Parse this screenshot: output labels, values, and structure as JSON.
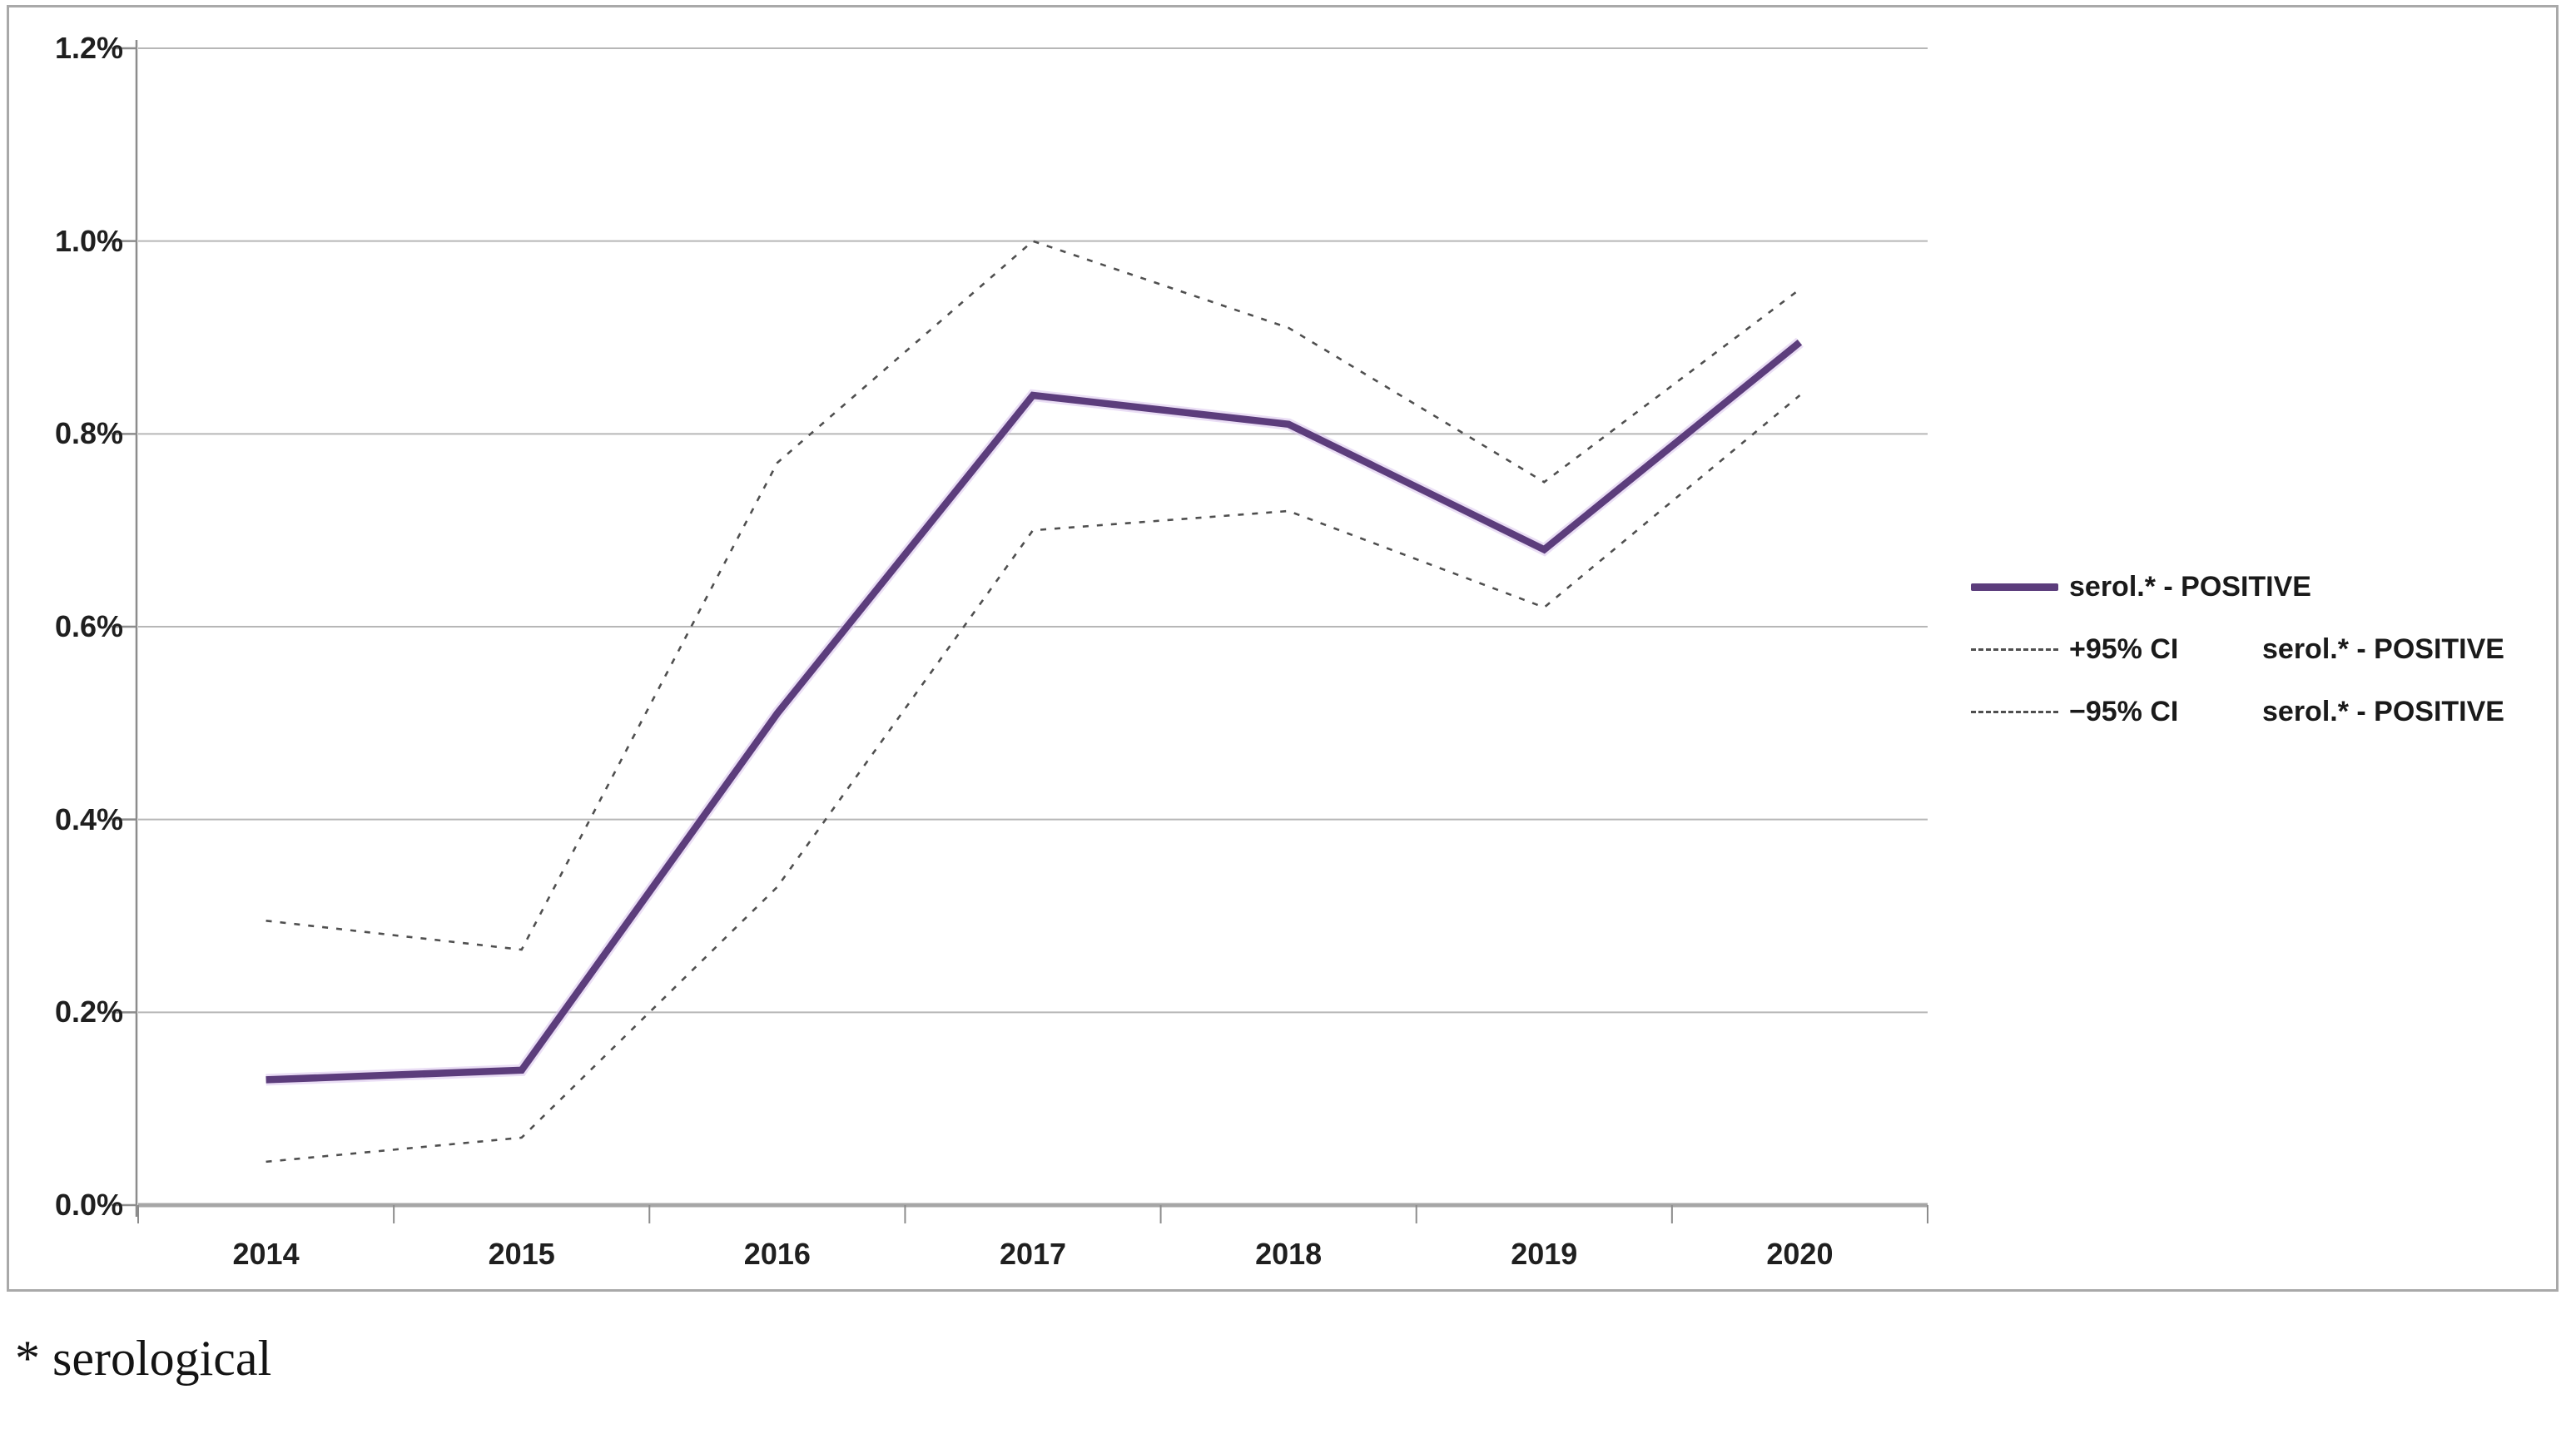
{
  "chart_data": {
    "type": "line",
    "x": [
      "2014",
      "2015",
      "2016",
      "2017",
      "2018",
      "2019",
      "2020"
    ],
    "series": [
      {
        "name": "serol.* - POSITIVE",
        "line_style": "solid",
        "color": "#5c3d7c",
        "values_percent": [
          0.13,
          0.14,
          0.51,
          0.84,
          0.81,
          0.68,
          0.895
        ]
      },
      {
        "name": "+95% CI serol.* - POSITIVE",
        "line_style": "dashed",
        "color": "#4f4f4f",
        "values_percent": [
          0.295,
          0.265,
          0.77,
          1.0,
          0.91,
          0.75,
          0.95
        ]
      },
      {
        "name": "−95% CI serol.* - POSITIVE",
        "line_style": "dashed",
        "color": "#4f4f4f",
        "values_percent": [
          0.045,
          0.07,
          0.33,
          0.7,
          0.72,
          0.62,
          0.84
        ]
      }
    ],
    "title": "",
    "xlabel": "",
    "ylabel": "",
    "ylim": [
      0,
      1.2
    ],
    "ytick_values": [
      0,
      0.2,
      0.4,
      0.6,
      0.8,
      1.0,
      1.2
    ],
    "ytick_labels": [
      "0.0%",
      "0.2%",
      "0.4%",
      "0.6%",
      "0.8%",
      "1.0%",
      "1.2%"
    ],
    "grid": "horizontal",
    "legend_position": "right-middle"
  },
  "legend": {
    "rows": [
      {
        "ci": "",
        "label": "serol.* - POSITIVE"
      },
      {
        "ci": "+95% CI",
        "label": "serol.* - POSITIVE"
      },
      {
        "ci": "−95% CI",
        "label": "serol.* - POSITIVE"
      }
    ]
  },
  "footnote": "* serological",
  "colors": {
    "series_line": "#5c3d7c",
    "series_halo": "#d8c3ec",
    "ci_lines": "#4f4f4f",
    "gridline": "#b7b7b7",
    "baseline": "#a6a6a6",
    "axis": "#8c8c8c",
    "text": "#1f1f1f"
  }
}
